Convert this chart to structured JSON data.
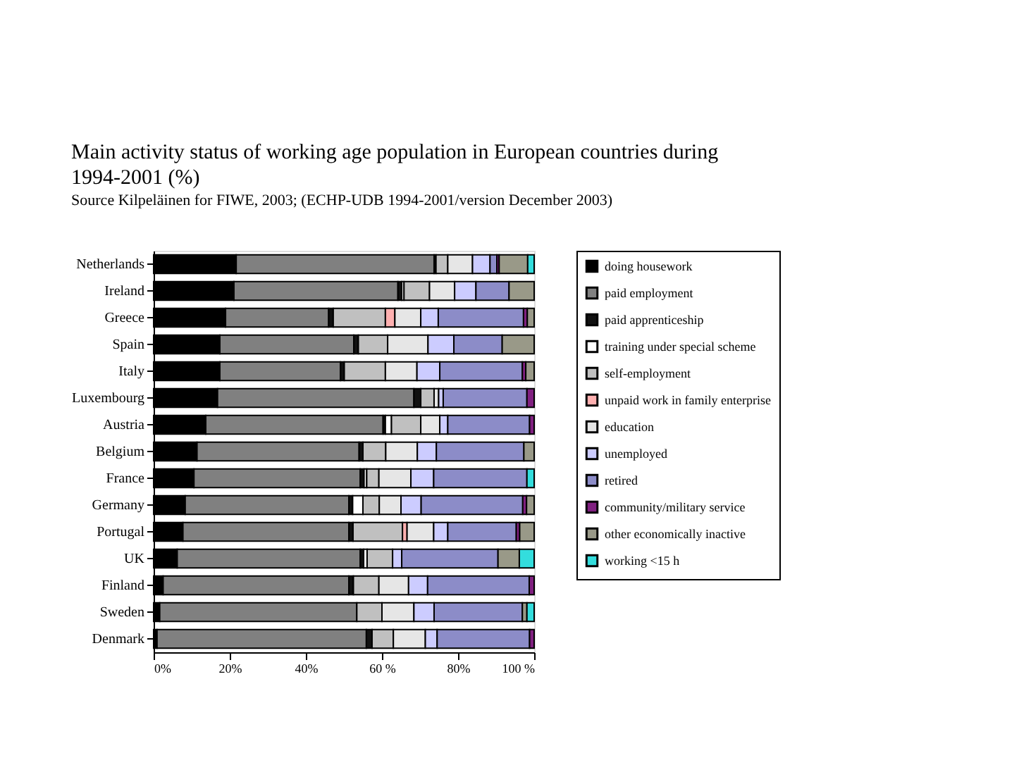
{
  "chart_data": {
    "type": "bar",
    "orientation": "horizontal",
    "stacked": true,
    "title": "Main activity status of working age population in European countries during 1994-2001 (%)",
    "subtitle": "Source Kilpeläinen for FIWE, 2003; (ECHP-UDB 1994-2001/version December 2003)",
    "categories": [
      "Netherlands",
      "Ireland",
      "Greece",
      "Spain",
      "Italy",
      "Luxembourg",
      "Austria",
      "Belgium",
      "France",
      "Germany",
      "Portugal",
      "UK",
      "Finland",
      "Sweden",
      "Denmark"
    ],
    "xlim": [
      0,
      100
    ],
    "xticks": [
      {
        "value": 0,
        "label": "0%"
      },
      {
        "value": 20,
        "label": "20%"
      },
      {
        "value": 40,
        "label": "40%"
      },
      {
        "value": 60,
        "label": "60 %"
      },
      {
        "value": 80,
        "label": "80%"
      },
      {
        "value": 100,
        "label": "100 %"
      }
    ],
    "legend": "right",
    "grid": false,
    "series": [
      {
        "name": "doing housework",
        "color": "#000000",
        "values": [
          21.7,
          21.1,
          18.9,
          17.4,
          17.4,
          16.8,
          13.7,
          11.4,
          10.6,
          8.3,
          7.7,
          6.2,
          2.5,
          1.6,
          0.9
        ]
      },
      {
        "name": "paid employment",
        "color": "#808080",
        "values": [
          52,
          43.1,
          27.1,
          35.2,
          31.7,
          51.6,
          46.6,
          42.6,
          43.7,
          43,
          43.6,
          48.1,
          48.8,
          51.8,
          55
        ]
      },
      {
        "name": "paid apprenticeship",
        "color": "#111111",
        "values": [
          0.5,
          1,
          1.2,
          1.2,
          1,
          1.8,
          0.6,
          1,
          1,
          1,
          1.1,
          0.9,
          1.2,
          0,
          1.5
        ]
      },
      {
        "name": "training under special scheme",
        "color": "#ffffff",
        "values": [
          0,
          0.6,
          0,
          0,
          0,
          0,
          1.6,
          0,
          0.7,
          2.7,
          0,
          0.9,
          0,
          0,
          0
        ]
      },
      {
        "name": "self-employment",
        "color": "#c0c0c0",
        "values": [
          3.1,
          6.7,
          13.7,
          7.7,
          10.8,
          3.5,
          7.7,
          6,
          3.2,
          4.3,
          13,
          6.7,
          6.7,
          6.6,
          5.6
        ]
      },
      {
        "name": "unpaid work in family enterprise",
        "color": "#ffb0b0",
        "values": [
          0,
          0,
          2.5,
          0,
          0,
          0,
          0,
          0,
          0,
          0,
          1.2,
          0,
          0,
          0,
          0
        ]
      },
      {
        "name": "education",
        "color": "#e6e6e6",
        "values": [
          6.5,
          6.6,
          6.8,
          10.6,
          8.3,
          1.2,
          5,
          8.3,
          8.4,
          5.7,
          7,
          null,
          7.8,
          8.4,
          8.4
        ]
      },
      {
        "name": "unemployed",
        "color": "#ccccff",
        "values": [
          4.6,
          5.6,
          4.6,
          6.8,
          6,
          1.2,
          2.1,
          5,
          6,
          5.3,
          3.7,
          2.4,
          5,
          5.3,
          3.1
        ]
      },
      {
        "name": "retired",
        "color": "#8c8cc8",
        "values": [
          1.8,
          8.7,
          22.4,
          12.7,
          21.7,
          22,
          21.5,
          23,
          24.5,
          26.7,
          18,
          25.3,
          26.7,
          23.2,
          24.3
        ]
      },
      {
        "name": "community/military service",
        "color": "#802080",
        "values": [
          0.6,
          0,
          1,
          0,
          0.9,
          1.9,
          1.2,
          0,
          0,
          1,
          0.9,
          null,
          1.3,
          0,
          1.2
        ]
      },
      {
        "name": "other economically inactive",
        "color": "#999988",
        "values": [
          7.5,
          6.6,
          1.8,
          8.4,
          2.2,
          0,
          0,
          2.7,
          0,
          2,
          3.8,
          5.6,
          0,
          1.2,
          0
        ]
      },
      {
        "name": "working <15 h",
        "color": "#33dddd",
        "values": [
          1.7,
          0,
          0,
          0,
          0,
          0,
          0,
          0,
          1.9,
          0,
          0,
          3.9,
          0,
          1.9,
          0
        ]
      }
    ]
  }
}
